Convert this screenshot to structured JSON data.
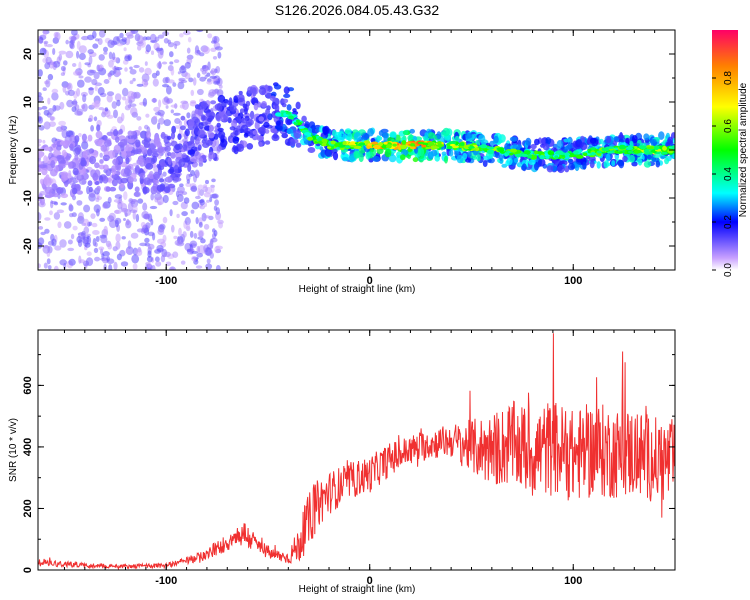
{
  "title": "S126.2026.084.05.43.G32",
  "colors": {
    "snr_line": "#f03030",
    "axis": "#000000",
    "background": "#ffffff"
  },
  "chart_data": [
    {
      "type": "heatmap",
      "name": "spectrogram",
      "xlabel": "Height of straight line (km)",
      "ylabel": "Frequency (Hz)",
      "xlim": [
        -163,
        150
      ],
      "ylim": [
        -25,
        25
      ],
      "x_ticks": [
        -100,
        0,
        100
      ],
      "x_tick_labels": [
        "-100",
        "0",
        "100"
      ],
      "y_ticks": [
        -20,
        -10,
        0,
        10,
        20
      ],
      "y_tick_labels": [
        "-20",
        "-10",
        "0",
        "10",
        "20"
      ],
      "ridge": {
        "description": "dominant frequency vs height",
        "x": [
          -163,
          -140,
          -120,
          -100,
          -90,
          -80,
          -65,
          -55,
          -45,
          -38,
          -30,
          -20,
          0,
          20,
          40,
          60,
          80,
          100,
          120,
          140,
          150
        ],
        "y": [
          -5,
          -3,
          -2,
          -3,
          2,
          4,
          6,
          7,
          8,
          7,
          3,
          1,
          1,
          1,
          1,
          0,
          -1,
          -1,
          0,
          0,
          0
        ],
        "amplitude": [
          0.15,
          0.2,
          0.2,
          0.25,
          0.3,
          0.3,
          0.35,
          0.3,
          0.4,
          0.5,
          0.55,
          0.6,
          0.75,
          0.9,
          0.7,
          0.6,
          0.55,
          0.5,
          0.6,
          0.65,
          0.6
        ]
      },
      "colorbar": {
        "label": "Normalized spectral amplitude",
        "range": [
          0,
          1
        ],
        "ticks": [
          0.0,
          0.2,
          0.4,
          0.6,
          0.8
        ],
        "tick_labels": [
          "0.0",
          "0.2",
          "0.4",
          "0.6",
          "0.8"
        ]
      }
    },
    {
      "type": "line",
      "name": "snr",
      "xlabel": "Height of straight line (km)",
      "ylabel": "SNR (10 * v/v)",
      "xlim": [
        -163,
        150
      ],
      "ylim": [
        0,
        780
      ],
      "x_ticks": [
        -100,
        0,
        100
      ],
      "x_tick_labels": [
        "-100",
        "0",
        "100"
      ],
      "y_ticks": [
        0,
        200,
        400,
        600
      ],
      "y_tick_labels": [
        "0",
        "200",
        "400",
        "600"
      ],
      "series": [
        {
          "name": "SNR",
          "x": [
            -163,
            -150,
            -140,
            -120,
            -100,
            -90,
            -80,
            -70,
            -62,
            -55,
            -48,
            -40,
            -35,
            -30,
            -25,
            -20,
            -10,
            0,
            10,
            20,
            30,
            40,
            50,
            60,
            70,
            80,
            90,
            100,
            110,
            120,
            130,
            140,
            150
          ],
          "mean": [
            25,
            20,
            15,
            12,
            15,
            30,
            50,
            90,
            120,
            80,
            50,
            40,
            80,
            160,
            220,
            250,
            290,
            310,
            360,
            390,
            410,
            420,
            400,
            390,
            410,
            380,
            400,
            370,
            390,
            380,
            380,
            360,
            350
          ],
          "spread": [
            12,
            10,
            8,
            6,
            8,
            12,
            18,
            30,
            45,
            30,
            20,
            20,
            60,
            90,
            80,
            70,
            60,
            60,
            55,
            50,
            50,
            55,
            90,
            120,
            140,
            150,
            160,
            150,
            160,
            150,
            150,
            140,
            140
          ]
        }
      ]
    }
  ]
}
